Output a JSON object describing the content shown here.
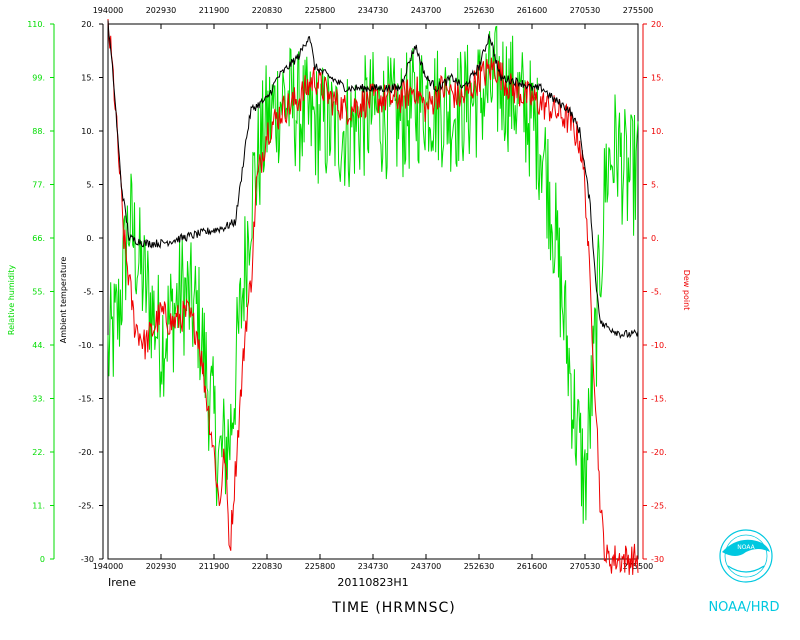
{
  "chart_data": {
    "type": "line",
    "xlabel": "TIME (HRMNSC)",
    "x_ticks": [
      "194000",
      "202930",
      "211900",
      "220830",
      "225800",
      "234730",
      "243700",
      "252630",
      "261600",
      "270530",
      "275500"
    ],
    "x_range": [
      194000,
      275500
    ],
    "storm": "Irene",
    "date": "20110823H1",
    "rh_axis": {
      "label": "Relative humidity",
      "color": "#00dd00",
      "range": [
        0,
        110
      ],
      "ticks": [
        "0",
        "11.",
        "22.",
        "33.",
        "44.",
        "55.",
        "66.",
        "77.",
        "88.",
        "99.",
        "110."
      ]
    },
    "temp_axis": {
      "label": "Ambient temperature",
      "color": "#000000",
      "range": [
        -30,
        20
      ],
      "ticks": [
        "-30",
        "-25.",
        "-20.",
        "-15.",
        "-10.",
        "-5.",
        "0.",
        "5.",
        "10.",
        "15.",
        "20."
      ]
    },
    "dew_axis": {
      "label": "Dew point",
      "color": "#ee0000",
      "range": [
        -30,
        20
      ],
      "ticks": [
        "-30",
        "-25.",
        "-20.",
        "-15.",
        "-10.",
        "-5.",
        "0.",
        "5.",
        "10.",
        "15.",
        "20."
      ]
    },
    "series": [
      {
        "name": "Ambient temperature",
        "color": "#000000",
        "axis": "temp",
        "points": [
          [
            0,
            20
          ],
          [
            0.01,
            15
          ],
          [
            0.025,
            5
          ],
          [
            0.04,
            0
          ],
          [
            0.07,
            -0.5
          ],
          [
            0.1,
            -0.5
          ],
          [
            0.14,
            0
          ],
          [
            0.18,
            0.5
          ],
          [
            0.22,
            1
          ],
          [
            0.24,
            1.5
          ],
          [
            0.25,
            5
          ],
          [
            0.26,
            9
          ],
          [
            0.27,
            12
          ],
          [
            0.3,
            13
          ],
          [
            0.32,
            15
          ],
          [
            0.34,
            16
          ],
          [
            0.36,
            17
          ],
          [
            0.38,
            19
          ],
          [
            0.39,
            16
          ],
          [
            0.42,
            15
          ],
          [
            0.45,
            14
          ],
          [
            0.5,
            14
          ],
          [
            0.55,
            14
          ],
          [
            0.58,
            18
          ],
          [
            0.6,
            15
          ],
          [
            0.62,
            14
          ],
          [
            0.65,
            15
          ],
          [
            0.67,
            14
          ],
          [
            0.7,
            16
          ],
          [
            0.72,
            19
          ],
          [
            0.74,
            15
          ],
          [
            0.78,
            14.5
          ],
          [
            0.8,
            14
          ],
          [
            0.82,
            14
          ],
          [
            0.84,
            13
          ],
          [
            0.87,
            12
          ],
          [
            0.89,
            10
          ],
          [
            0.91,
            3
          ],
          [
            0.92,
            -4
          ],
          [
            0.93,
            -8
          ],
          [
            0.95,
            -8.5
          ],
          [
            0.97,
            -9
          ],
          [
            0.99,
            -9
          ]
        ]
      },
      {
        "name": "Dew point",
        "color": "#ee0000",
        "axis": "dew",
        "points": [
          [
            0,
            20
          ],
          [
            0.01,
            15
          ],
          [
            0.03,
            0
          ],
          [
            0.05,
            -8
          ],
          [
            0.07,
            -10
          ],
          [
            0.1,
            -7
          ],
          [
            0.12,
            -8
          ],
          [
            0.15,
            -7
          ],
          [
            0.17,
            -9
          ],
          [
            0.2,
            -20
          ],
          [
            0.21,
            -25
          ],
          [
            0.22,
            -20
          ],
          [
            0.23,
            -29
          ],
          [
            0.24,
            -22
          ],
          [
            0.25,
            -15
          ],
          [
            0.26,
            -8
          ],
          [
            0.27,
            -4
          ],
          [
            0.28,
            5
          ],
          [
            0.3,
            10
          ],
          [
            0.33,
            12
          ],
          [
            0.36,
            13
          ],
          [
            0.39,
            15
          ],
          [
            0.42,
            13
          ],
          [
            0.45,
            12
          ],
          [
            0.5,
            13
          ],
          [
            0.55,
            13
          ],
          [
            0.58,
            14
          ],
          [
            0.6,
            12
          ],
          [
            0.63,
            14
          ],
          [
            0.67,
            13
          ],
          [
            0.7,
            15
          ],
          [
            0.73,
            16
          ],
          [
            0.76,
            14
          ],
          [
            0.8,
            13
          ],
          [
            0.84,
            12
          ],
          [
            0.87,
            11
          ],
          [
            0.89,
            9
          ],
          [
            0.9,
            5
          ],
          [
            0.91,
            -5
          ],
          [
            0.92,
            -15
          ],
          [
            0.93,
            -26
          ],
          [
            0.94,
            -30
          ]
        ]
      }
    ]
  },
  "logo": {
    "text": "NOAA/HRD",
    "badge_text": "NOAA"
  }
}
